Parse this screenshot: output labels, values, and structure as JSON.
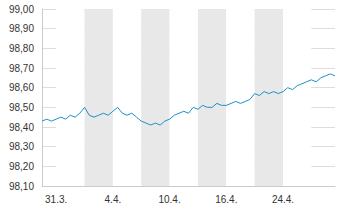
{
  "chart_data": {
    "type": "line",
    "color": "#1f8fc8",
    "grid": true,
    "categories": [
      null,
      null,
      null,
      "31.3.",
      null,
      null,
      null,
      null,
      null,
      null,
      null,
      null,
      null,
      null,
      null,
      "4.4.",
      null,
      null,
      null,
      null,
      null,
      null,
      null,
      null,
      null,
      null,
      null,
      "10.4.",
      null,
      null,
      null,
      null,
      null,
      null,
      null,
      null,
      null,
      null,
      null,
      "16.4.",
      null,
      null,
      null,
      null,
      null,
      null,
      null,
      null,
      null,
      null,
      null,
      "24.4.",
      null,
      null,
      null,
      null,
      null,
      null,
      null,
      null,
      null,
      null,
      null
    ],
    "values": [
      98.43,
      98.44,
      98.43,
      98.44,
      98.45,
      98.44,
      98.46,
      98.45,
      98.47,
      98.5,
      98.46,
      98.45,
      98.46,
      98.47,
      98.46,
      98.48,
      98.5,
      98.47,
      98.46,
      98.47,
      98.45,
      98.43,
      98.42,
      98.41,
      98.42,
      98.41,
      98.43,
      98.44,
      98.46,
      98.47,
      98.48,
      98.47,
      98.5,
      98.49,
      98.51,
      98.5,
      98.5,
      98.52,
      98.51,
      98.51,
      98.52,
      98.53,
      98.52,
      98.53,
      98.54,
      98.57,
      98.56,
      98.58,
      98.57,
      98.58,
      98.57,
      98.58,
      98.6,
      98.59,
      98.61,
      98.62,
      98.63,
      98.64,
      98.63,
      98.65,
      98.66,
      98.67,
      98.66
    ],
    "ylim": [
      98.1,
      99.0
    ],
    "yticks": [
      {
        "value": 98.1,
        "label": "98,10"
      },
      {
        "value": 98.2,
        "label": "98,20"
      },
      {
        "value": 98.3,
        "label": "98,30"
      },
      {
        "value": 98.4,
        "label": "98,40"
      },
      {
        "value": 98.5,
        "label": "98,50"
      },
      {
        "value": 98.6,
        "label": "98,60"
      },
      {
        "value": 98.7,
        "label": "98,70"
      },
      {
        "value": 98.8,
        "label": "98,80"
      },
      {
        "value": 98.9,
        "label": "98,90"
      },
      {
        "value": 99.0,
        "label": "99,00"
      }
    ]
  }
}
